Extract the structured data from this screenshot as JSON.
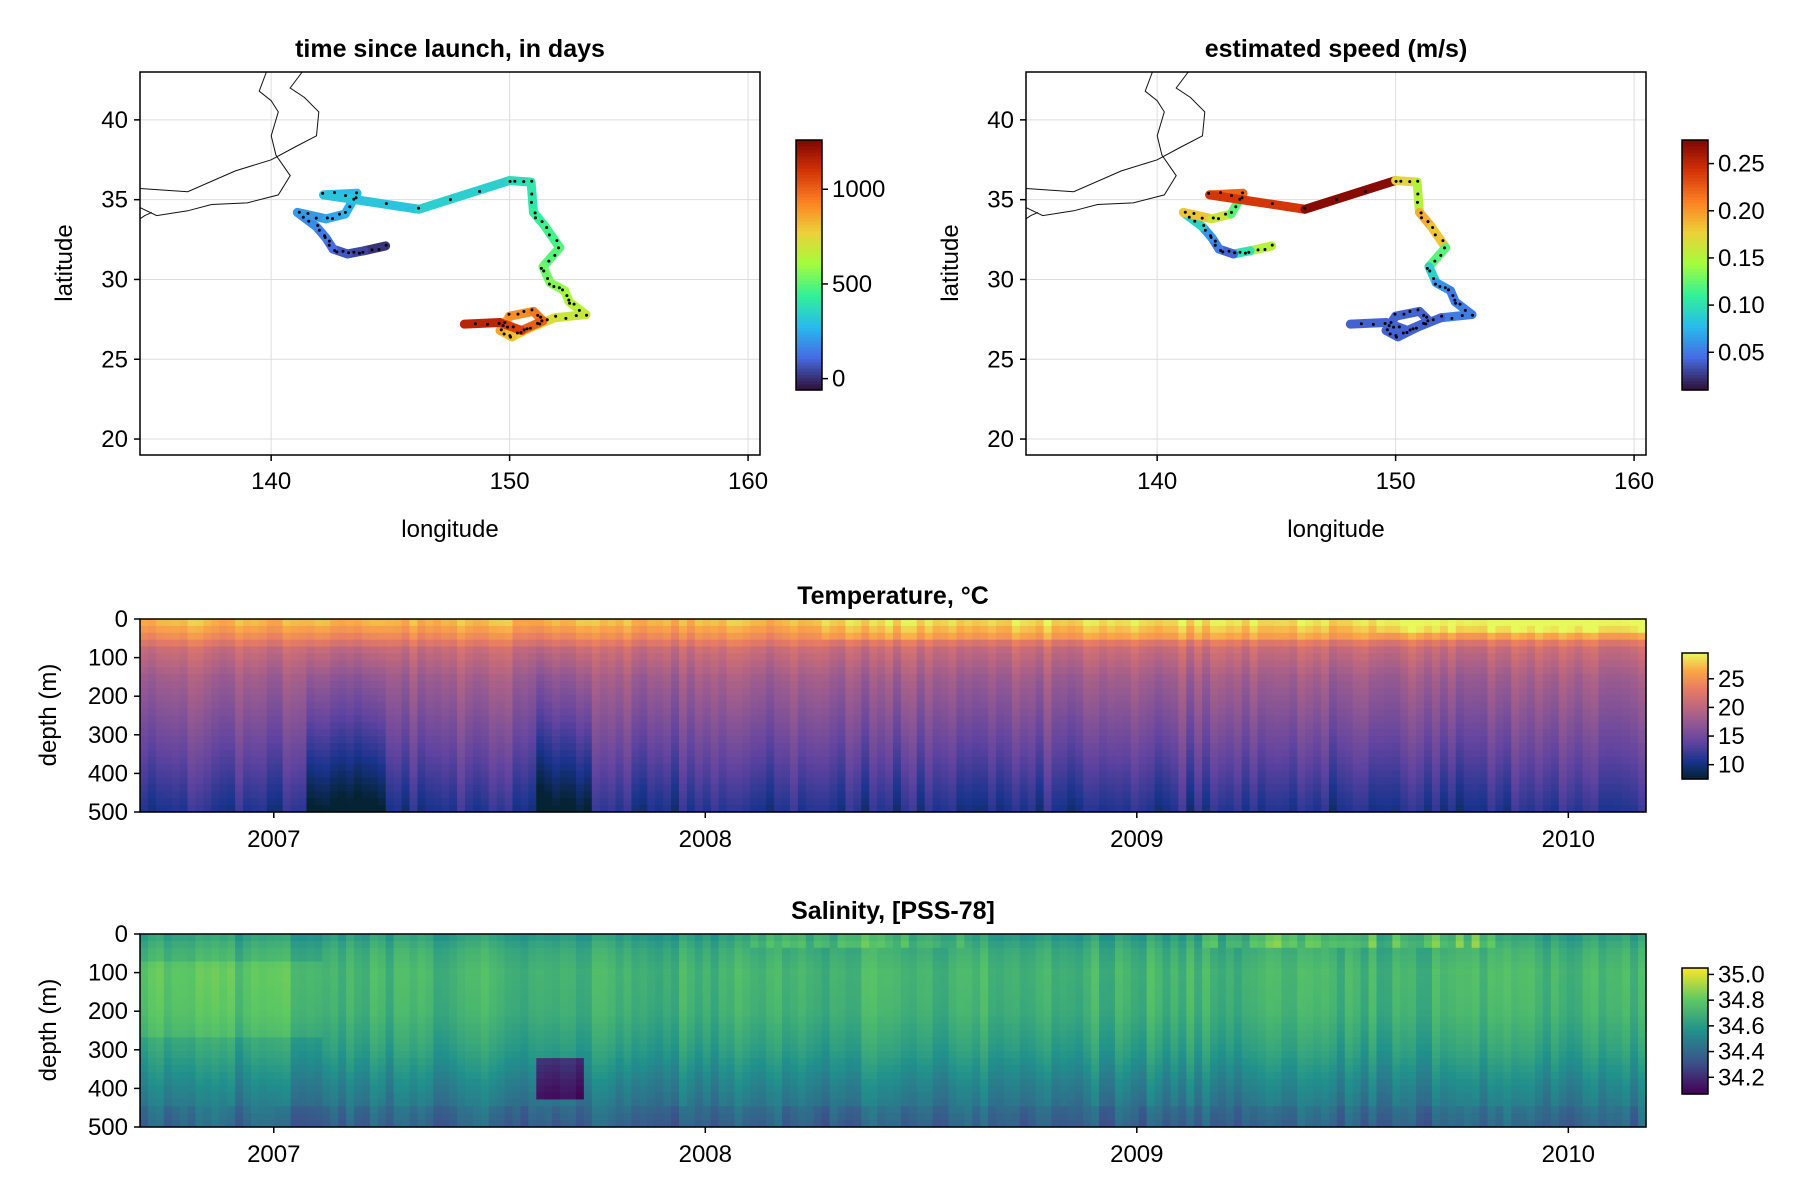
{
  "chart_data": [
    {
      "type": "scatter",
      "title": "time since launch, in days",
      "xlabel": "longitude",
      "ylabel": "latitude",
      "xlim": [
        134.5,
        160.5
      ],
      "ylim": [
        19,
        43
      ],
      "xticks": [
        140,
        150,
        160
      ],
      "yticks": [
        20,
        25,
        30,
        35,
        40
      ],
      "grid": true,
      "colormap": "turbo",
      "colorbar": {
        "min": -60,
        "max": 1260,
        "ticks": [
          0,
          500,
          1000
        ],
        "placement": "right"
      },
      "track": [
        [
          144.8,
          32.1
        ],
        [
          143.9,
          31.8
        ],
        [
          143.2,
          31.6
        ],
        [
          142.6,
          31.9
        ],
        [
          142.3,
          32.6
        ],
        [
          141.9,
          33.3
        ],
        [
          141.1,
          34.2
        ],
        [
          142.3,
          33.8
        ],
        [
          143.1,
          34.1
        ],
        [
          143.6,
          35.4
        ],
        [
          142.2,
          35.3
        ],
        [
          146.2,
          34.4
        ],
        [
          150.0,
          36.2
        ],
        [
          150.9,
          36.1
        ],
        [
          151.0,
          34.2
        ],
        [
          151.5,
          33.3
        ],
        [
          152.1,
          32.0
        ],
        [
          151.4,
          30.8
        ],
        [
          151.7,
          29.8
        ],
        [
          152.3,
          29.3
        ],
        [
          152.5,
          28.6
        ],
        [
          153.2,
          27.8
        ],
        [
          151.9,
          27.6
        ],
        [
          150.9,
          27.0
        ],
        [
          150.1,
          26.4
        ],
        [
          149.6,
          26.8
        ],
        [
          150.0,
          27.7
        ],
        [
          151.0,
          28.0
        ],
        [
          151.4,
          27.4
        ],
        [
          150.5,
          26.8
        ],
        [
          149.6,
          27.3
        ],
        [
          148.1,
          27.2
        ]
      ],
      "days": [
        0,
        35,
        70,
        105,
        140,
        170,
        200,
        230,
        255,
        275,
        300,
        330,
        370,
        400,
        430,
        460,
        490,
        520,
        560,
        600,
        640,
        680,
        720,
        760,
        800,
        850,
        900,
        950,
        1000,
        1070,
        1140,
        1220
      ]
    },
    {
      "type": "scatter",
      "title": "estimated speed (m/s)",
      "xlabel": "longitude",
      "ylabel": "latitude",
      "xlim": [
        134.5,
        160.5
      ],
      "ylim": [
        19,
        43
      ],
      "xticks": [
        140,
        150,
        160
      ],
      "yticks": [
        20,
        25,
        30,
        35,
        40
      ],
      "grid": true,
      "colormap": "turbo",
      "colorbar": {
        "min": 0.01,
        "max": 0.275,
        "ticks": [
          0.05,
          0.1,
          0.15,
          0.2,
          0.25
        ],
        "tick_labels": [
          "0.05",
          "0.10",
          "0.15",
          "0.20",
          "0.25"
        ],
        "placement": "right"
      },
      "speed": [
        0.15,
        0.1,
        0.04,
        0.05,
        0.06,
        0.09,
        0.18,
        0.16,
        0.12,
        0.22,
        0.24,
        0.27,
        0.17,
        0.15,
        0.19,
        0.18,
        0.12,
        0.09,
        0.06,
        0.05,
        0.05,
        0.05,
        0.04,
        0.04,
        0.04,
        0.04,
        0.04,
        0.04,
        0.04,
        0.04,
        0.04,
        0.05
      ]
    },
    {
      "type": "heatmap",
      "title": "Temperature, °C",
      "ylabel": "depth (m)",
      "ylim": [
        500,
        0
      ],
      "yticks": [
        0,
        100,
        200,
        300,
        400,
        500
      ],
      "xlim": [
        2006.69,
        2010.18
      ],
      "xticks": [
        2007,
        2008,
        2009,
        2010
      ],
      "colormap": "thermal",
      "colorbar": {
        "min": 7.5,
        "max": 29.5,
        "ticks": [
          10,
          15,
          20,
          25
        ],
        "placement": "right"
      },
      "profile_depths": [
        0,
        40,
        80,
        150,
        250,
        350,
        450,
        500
      ],
      "profile_values": [
        27.5,
        25,
        21,
        18.5,
        16.5,
        14.5,
        12.5,
        11.5
      ]
    },
    {
      "type": "heatmap",
      "title": "Salinity, [PSS-78]",
      "ylabel": "depth (m)",
      "ylim": [
        500,
        0
      ],
      "yticks": [
        0,
        100,
        200,
        300,
        400,
        500
      ],
      "xlim": [
        2006.69,
        2010.18
      ],
      "xticks": [
        2007,
        2008,
        2009,
        2010
      ],
      "colormap": "viridis",
      "colorbar": {
        "min": 34.07,
        "max": 35.05,
        "ticks": [
          34.2,
          34.4,
          34.6,
          34.8,
          35.0
        ],
        "tick_labels": [
          "34.2",
          "34.4",
          "34.6",
          "34.8",
          "35.0"
        ],
        "placement": "right"
      },
      "profile_depths": [
        0,
        40,
        100,
        200,
        300,
        400,
        500
      ],
      "profile_values": [
        34.6,
        34.68,
        34.72,
        34.7,
        34.62,
        34.5,
        34.4
      ]
    }
  ],
  "coastline_map": [
    [
      [
        134.5,
        35.7
      ],
      [
        136.5,
        35.5
      ],
      [
        138.5,
        36.8
      ],
      [
        140.0,
        37.5
      ],
      [
        141.0,
        38.3
      ],
      [
        141.9,
        39.0
      ],
      [
        142.0,
        40.5
      ],
      [
        141.4,
        41.4
      ],
      [
        140.8,
        42.0
      ],
      [
        141.3,
        43.0
      ]
    ],
    [
      [
        134.5,
        34.5
      ],
      [
        135.2,
        34.0
      ],
      [
        136.5,
        34.3
      ],
      [
        137.5,
        34.7
      ],
      [
        139.0,
        34.8
      ],
      [
        140.3,
        35.3
      ],
      [
        140.8,
        36.5
      ],
      [
        140.2,
        37.8
      ],
      [
        140.0,
        39.0
      ],
      [
        140.3,
        40.5
      ],
      [
        140.0,
        41.2
      ],
      [
        139.5,
        41.8
      ],
      [
        139.8,
        43.0
      ]
    ],
    [
      [
        134.5,
        33.8
      ],
      [
        134.7,
        34.0
      ],
      [
        135.0,
        34.2
      ]
    ]
  ]
}
